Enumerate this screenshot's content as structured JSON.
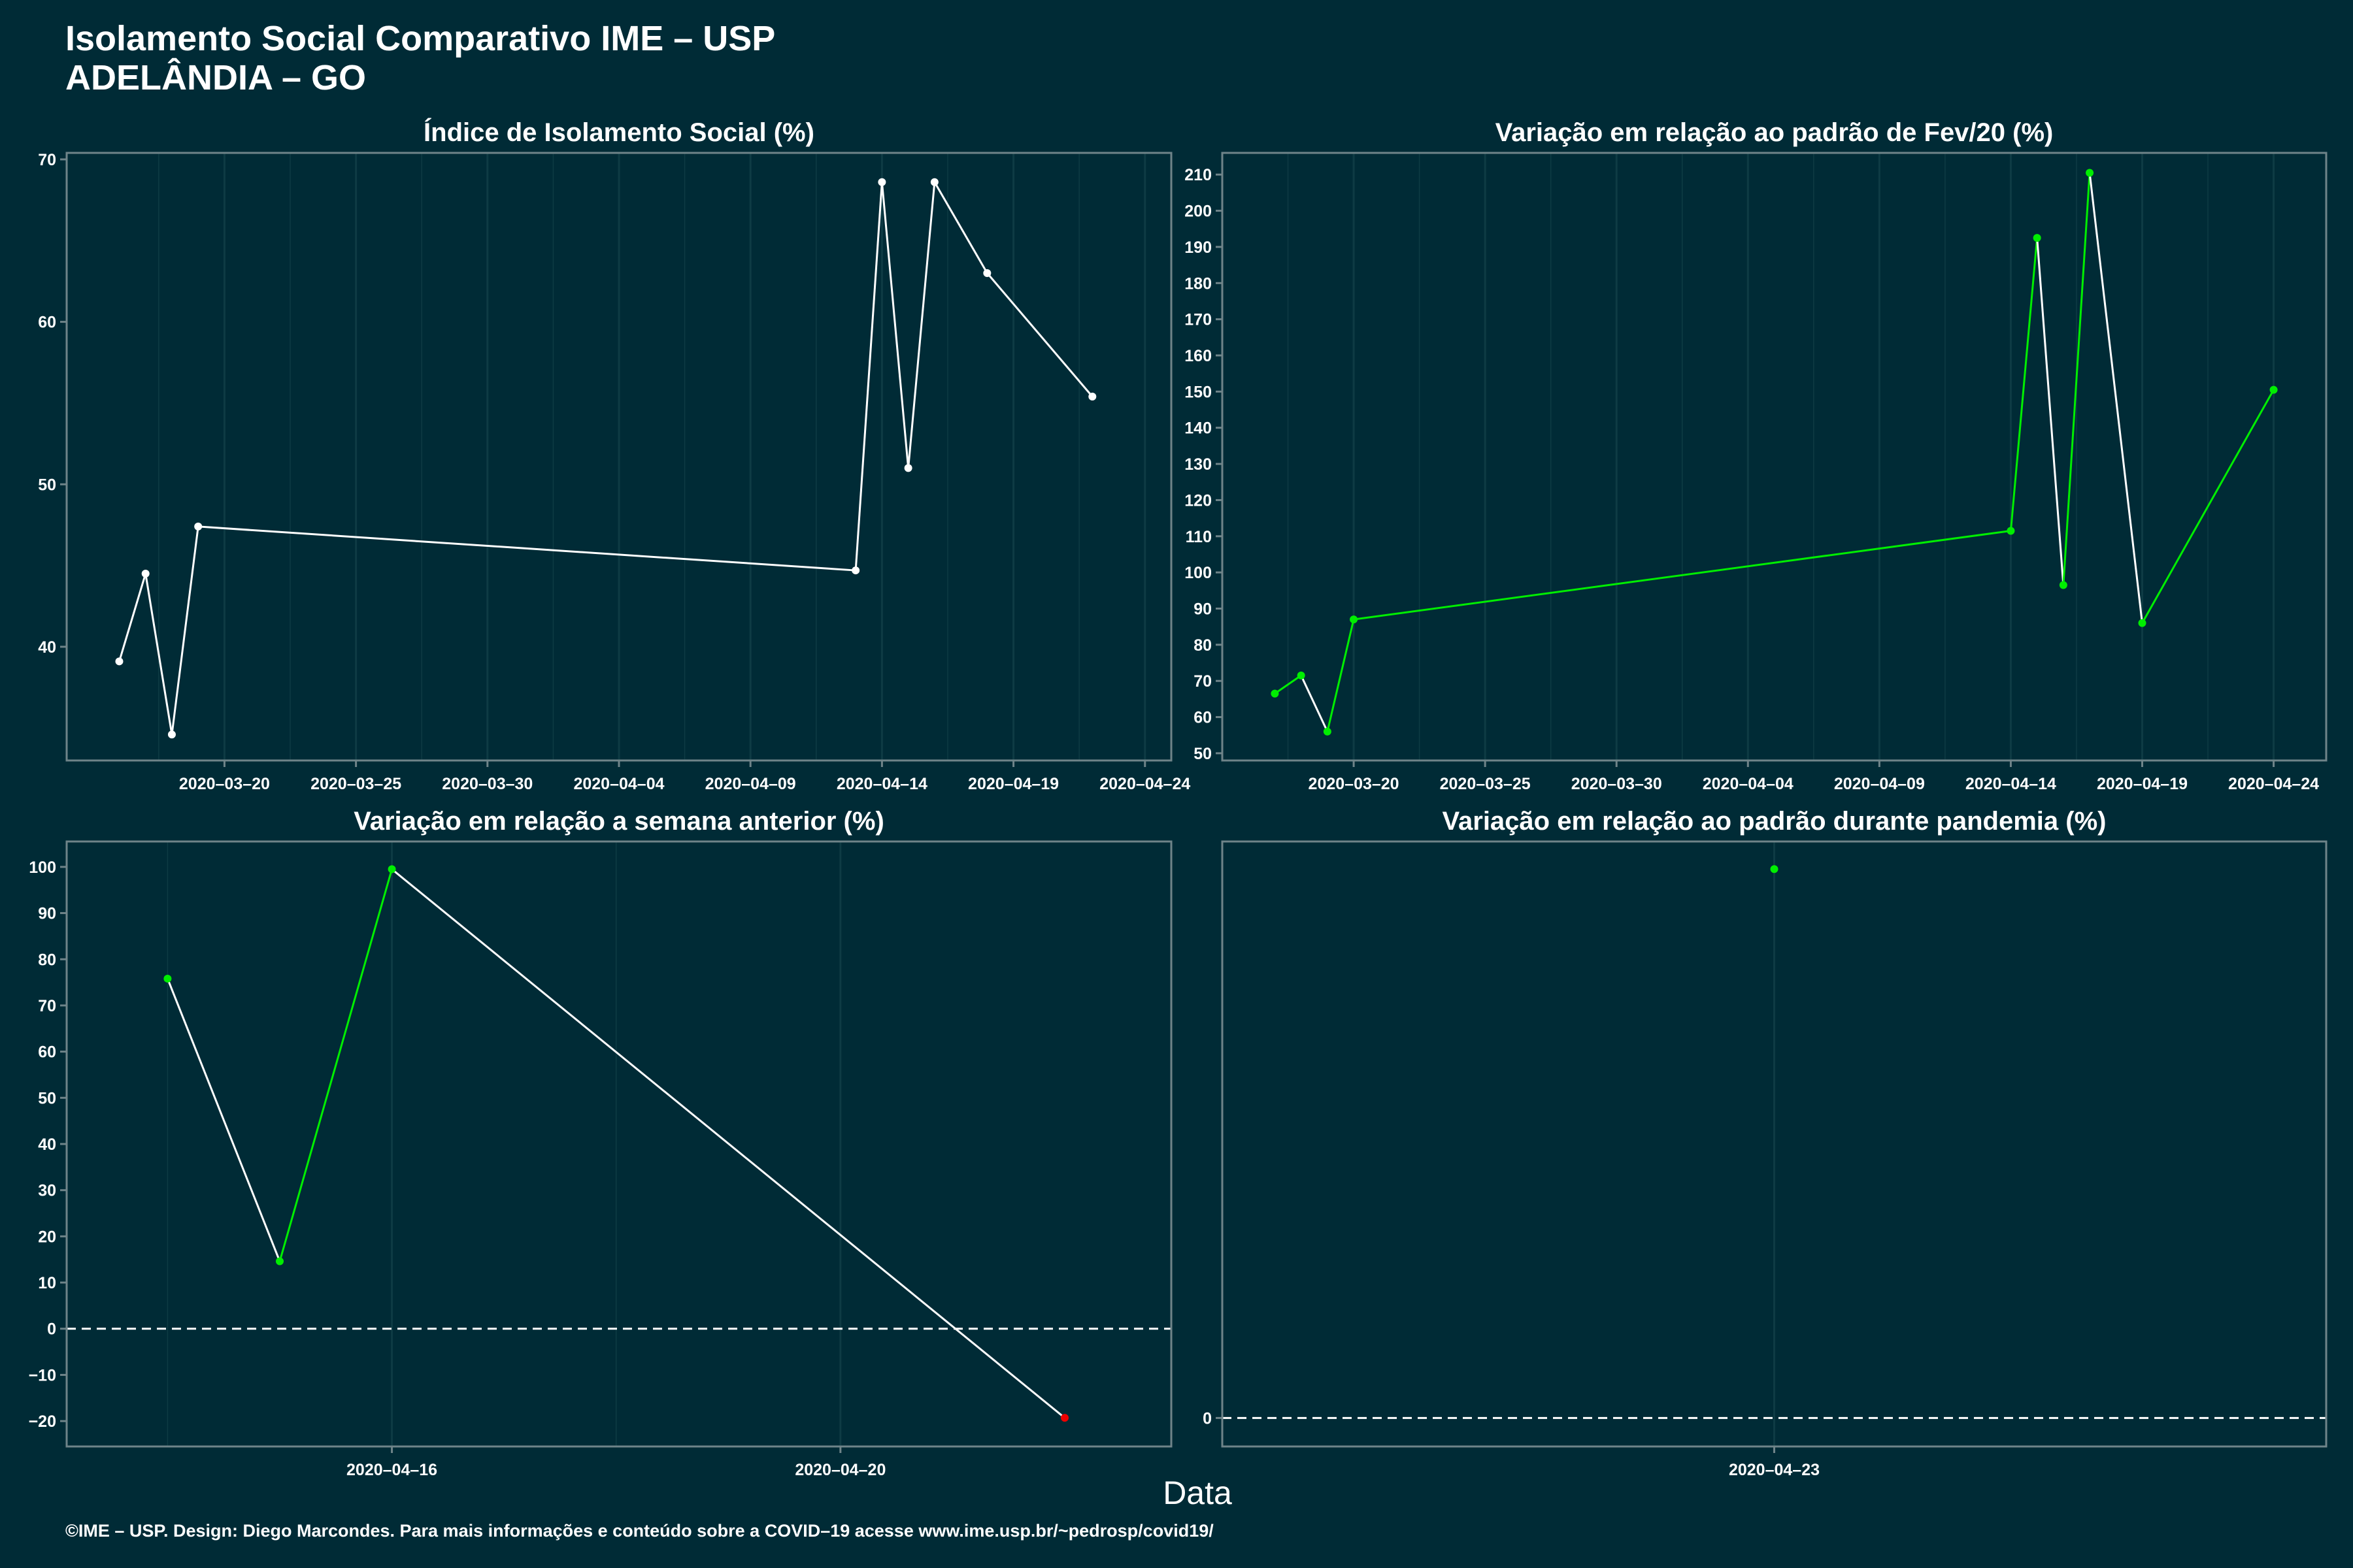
{
  "header": {
    "title": "Isolamento Social Comparativo IME – USP",
    "subtitle": "ADELÂNDIA – GO"
  },
  "xlabel": "Data",
  "caption": "©IME – USP. Design: Diego Marcondes. Para mais informações e conteúdo sobre a COVID–19 acesse www.ime.usp.br/~pedrosp/covid19/",
  "colors": {
    "background": "#002b36",
    "line": "#ffffff",
    "positive": "#00ee00",
    "negative": "#ee0000",
    "grid": "#0e3b44",
    "frame": "#6f8489"
  },
  "chart_data": [
    {
      "type": "line",
      "title": "Índice de Isolamento Social (%)",
      "x_tick_labels": [
        "2020–03–20",
        "2020–03–25",
        "2020–03–30",
        "2020–04–04",
        "2020–04–09",
        "2020–04–14",
        "2020–04–19",
        "2020–04–24"
      ],
      "x_ticks": [
        "2020-03-20",
        "2020-03-25",
        "2020-03-30",
        "2020-04-04",
        "2020-04-09",
        "2020-04-14",
        "2020-04-19",
        "2020-04-24"
      ],
      "xlim": [
        "2020-03-14",
        "2020-04-25"
      ],
      "y_ticks": [
        40,
        50,
        60,
        70
      ],
      "ylim": [
        33.0,
        70.4
      ],
      "line_segments": [],
      "points": [
        {
          "x": "2020-03-16",
          "y": 39.1
        },
        {
          "x": "2020-03-17",
          "y": 44.5
        },
        {
          "x": "2020-03-18",
          "y": 34.6
        },
        {
          "x": "2020-03-19",
          "y": 47.4
        },
        {
          "x": "2020-04-13",
          "y": 44.7
        },
        {
          "x": "2020-04-14",
          "y": 68.6
        },
        {
          "x": "2020-04-15",
          "y": 51.0
        },
        {
          "x": "2020-04-16",
          "y": 68.6
        },
        {
          "x": "2020-04-18",
          "y": 63.0
        },
        {
          "x": "2020-04-22",
          "y": 55.4
        }
      ]
    },
    {
      "type": "line",
      "title": "Variação em relação ao padrão de Fev/20 (%)",
      "x_tick_labels": [
        "2020–03–20",
        "2020–03–25",
        "2020–03–30",
        "2020–04–04",
        "2020–04–09",
        "2020–04–14",
        "2020–04–19",
        "2020–04–24"
      ],
      "x_ticks": [
        "2020-03-20",
        "2020-03-25",
        "2020-03-30",
        "2020-04-04",
        "2020-04-09",
        "2020-04-14",
        "2020-04-19",
        "2020-04-24"
      ],
      "xlim": [
        "2020-03-15",
        "2020-04-26"
      ],
      "y_ticks": [
        50,
        60,
        70,
        80,
        90,
        100,
        110,
        120,
        130,
        140,
        150,
        160,
        170,
        180,
        190,
        200,
        210
      ],
      "ylim": [
        48,
        216
      ],
      "points": [
        {
          "x": "2020-03-17",
          "y": 66.5
        },
        {
          "x": "2020-03-18",
          "y": 71.5
        },
        {
          "x": "2020-03-19",
          "y": 56.0
        },
        {
          "x": "2020-03-20",
          "y": 87.0
        },
        {
          "x": "2020-04-14",
          "y": 111.5
        },
        {
          "x": "2020-04-15",
          "y": 192.5
        },
        {
          "x": "2020-04-16",
          "y": 96.5
        },
        {
          "x": "2020-04-17",
          "y": 210.5
        },
        {
          "x": "2020-04-19",
          "y": 86.0
        },
        {
          "x": "2020-04-24",
          "y": 150.5
        }
      ]
    },
    {
      "type": "line",
      "title": "Variação em relação a semana anterior (%)",
      "x_tick_labels": [
        "2020–04–16",
        "2020–04–20"
      ],
      "x_ticks": [
        "2020-04-16",
        "2020-04-20"
      ],
      "xlim": [
        "2020-04-13.1",
        "2020-04-22.95"
      ],
      "y_ticks": [
        -20,
        -10,
        0,
        10,
        20,
        30,
        40,
        50,
        60,
        70,
        80,
        90,
        100
      ],
      "ylim": [
        -25.5,
        105.5
      ],
      "reference_line": 0,
      "points": [
        {
          "x": "2020-04-14",
          "y": 75.8
        },
        {
          "x": "2020-04-15",
          "y": 14.6
        },
        {
          "x": "2020-04-16",
          "y": 99.5
        },
        {
          "x": "2020-04-22",
          "y": -19.3
        }
      ]
    },
    {
      "type": "scatter",
      "title": "Variação em relação ao padrão durante pandemia (%)",
      "x_tick_labels": [
        "2020–04–23"
      ],
      "x_ticks": [
        "2020-04-23"
      ],
      "xlim": [
        "2020-04-22.5",
        "2020-04-23.5"
      ],
      "y_ticks": [
        0
      ],
      "ylim": [
        -3.1,
        62.7
      ],
      "reference_line": 0,
      "points": [
        {
          "x": "2020-04-23",
          "y": 59.7
        }
      ]
    }
  ]
}
